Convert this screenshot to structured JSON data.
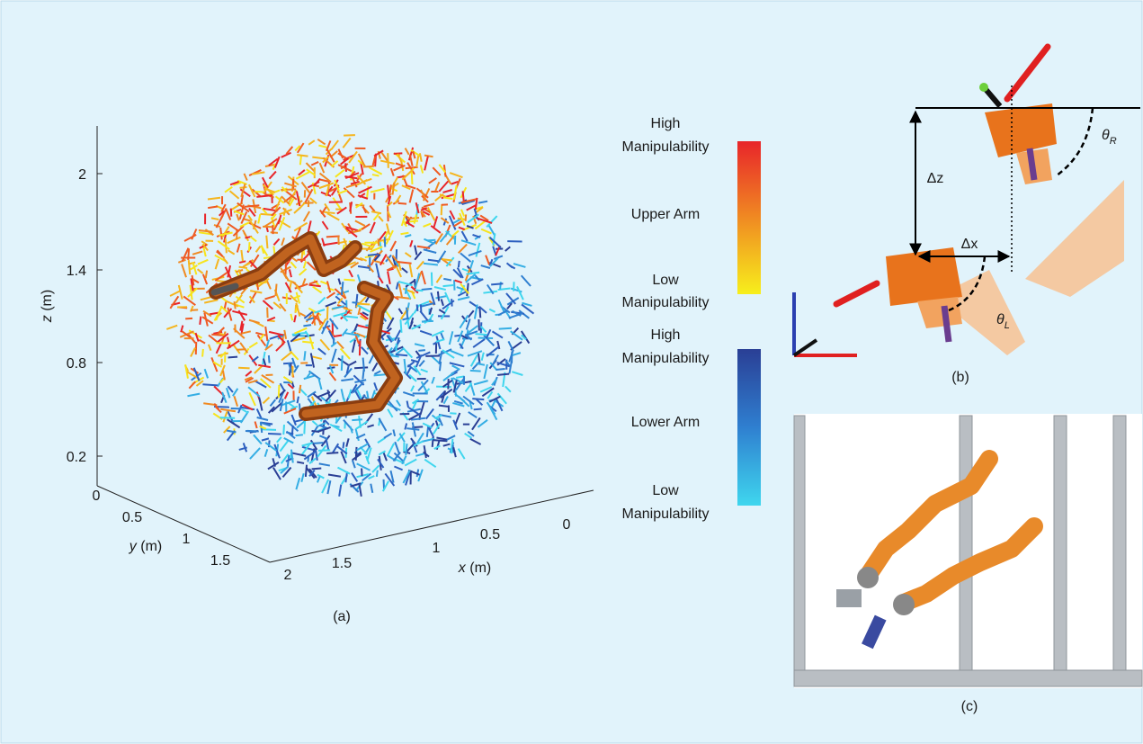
{
  "panel_a": {
    "label": "(a)",
    "z_axis_label": {
      "name": "z",
      "unit": "(m)"
    },
    "y_axis_label": {
      "name": "y",
      "unit": "(m)"
    },
    "x_axis_label": {
      "name": "x",
      "unit": "(m)"
    },
    "z_ticks": [
      "2",
      "1.4",
      "0.8",
      "0.2"
    ],
    "y_ticks": [
      "0",
      "0.5",
      "1",
      "1.5"
    ],
    "x_ticks": [
      "2",
      "1.5",
      "1",
      "0.5",
      "0"
    ]
  },
  "legend": {
    "upper": {
      "high": [
        "High",
        "Manipulability"
      ],
      "title": "Upper Arm",
      "low": [
        "Low",
        "Manipulability"
      ]
    },
    "lower": {
      "high": [
        "High",
        "Manipulability"
      ],
      "title": "Lower Arm",
      "low": [
        "Low",
        "Manipulability"
      ]
    }
  },
  "panel_b": {
    "label": "(b)",
    "delta_z": "Δz",
    "delta_x": "Δx",
    "theta_r": {
      "symbol": "θ",
      "subscript": "R"
    },
    "theta_l": {
      "symbol": "θ",
      "subscript": "L"
    }
  },
  "panel_c": {
    "label": "(c)"
  }
}
